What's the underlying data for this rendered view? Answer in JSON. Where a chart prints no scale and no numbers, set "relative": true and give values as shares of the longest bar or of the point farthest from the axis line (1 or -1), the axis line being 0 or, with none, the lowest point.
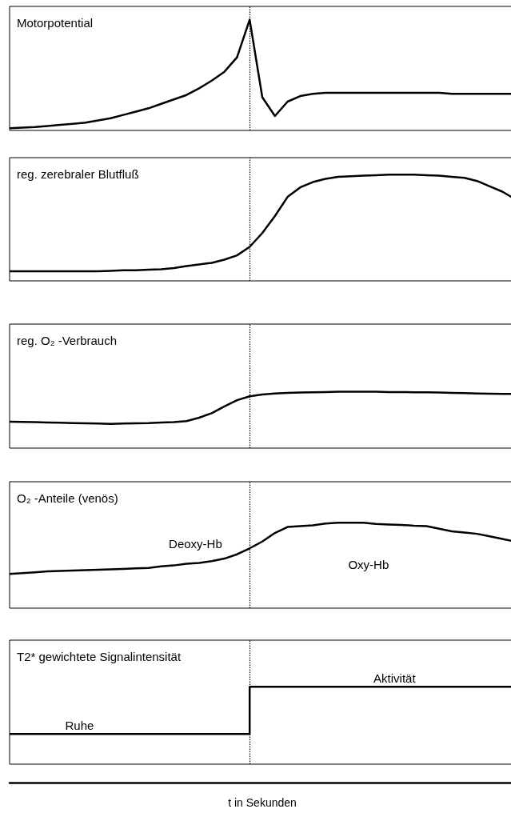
{
  "chart_data": [
    {
      "type": "line",
      "title": "Motorpotential",
      "relative": true,
      "marker": "none",
      "categories": [
        null,
        null,
        null,
        null,
        null,
        null,
        null,
        null,
        null,
        null,
        null,
        null,
        null,
        null,
        null,
        null,
        null,
        null,
        null,
        null,
        null,
        null,
        null,
        null,
        null,
        null,
        null,
        null,
        null,
        null,
        null,
        null,
        null,
        null,
        null,
        null,
        null,
        null,
        null,
        null,
        null
      ],
      "series": [
        {
          "color": "#000000",
          "values": [
            0.02,
            0.025,
            0.03,
            0.04,
            0.05,
            0.06,
            0.07,
            0.09,
            0.11,
            0.14,
            0.17,
            0.2,
            0.24,
            0.28,
            0.32,
            0.38,
            0.45,
            0.53,
            0.66,
            1,
            0.3,
            0.13,
            0.26,
            0.31,
            0.33,
            0.34,
            0.34,
            0.34,
            0.34,
            0.34,
            0.34,
            0.34,
            0.34,
            0.34,
            0.34,
            0.33,
            0.33,
            0.33,
            0.33,
            0.33,
            0.33
          ]
        }
      ]
    },
    {
      "type": "line",
      "title": "reg. zerebraler Blutfluß",
      "relative": true,
      "marker": "none",
      "categories": [
        null,
        null,
        null,
        null,
        null,
        null,
        null,
        null,
        null,
        null,
        null,
        null,
        null,
        null,
        null,
        null,
        null,
        null,
        null,
        null,
        null,
        null,
        null,
        null,
        null,
        null,
        null,
        null,
        null,
        null,
        null,
        null,
        null,
        null,
        null,
        null,
        null,
        null,
        null,
        null,
        null
      ],
      "series": [
        {
          "color": "#000000",
          "values": [
            0.09,
            0.09,
            0.09,
            0.09,
            0.09,
            0.09,
            0.09,
            0.09,
            0.095,
            0.1,
            0.1,
            0.105,
            0.11,
            0.12,
            0.14,
            0.155,
            0.17,
            0.2,
            0.24,
            0.32,
            0.45,
            0.61,
            0.79,
            0.88,
            0.93,
            0.96,
            0.98,
            0.985,
            0.99,
            0.995,
            1,
            1,
            1,
            0.995,
            0.99,
            0.98,
            0.97,
            0.94,
            0.89,
            0.84,
            0.77
          ]
        }
      ]
    },
    {
      "type": "line",
      "title": "reg. O₂ -Verbrauch",
      "relative": true,
      "marker": "none",
      "categories": [
        null,
        null,
        null,
        null,
        null,
        null,
        null,
        null,
        null,
        null,
        null,
        null,
        null,
        null,
        null,
        null,
        null,
        null,
        null,
        null,
        null,
        null,
        null,
        null,
        null,
        null,
        null,
        null,
        null,
        null,
        null,
        null,
        null,
        null,
        null,
        null,
        null,
        null,
        null,
        null,
        null
      ],
      "series": [
        {
          "color": "#000000",
          "values": [
            0.47,
            0.465,
            0.46,
            0.455,
            0.45,
            0.445,
            0.44,
            0.435,
            0.43,
            0.435,
            0.44,
            0.445,
            0.455,
            0.46,
            0.48,
            0.54,
            0.62,
            0.74,
            0.85,
            0.92,
            0.95,
            0.97,
            0.98,
            0.985,
            0.99,
            0.995,
            1,
            1,
            1,
            1,
            0.995,
            0.995,
            0.99,
            0.99,
            0.985,
            0.98,
            0.975,
            0.97,
            0.965,
            0.96,
            0.96
          ]
        }
      ]
    },
    {
      "type": "line",
      "title": "O₂ -Anteile (venös)",
      "relative": true,
      "marker": "none",
      "categories": [
        null,
        null,
        null,
        null,
        null,
        null,
        null,
        null,
        null,
        null,
        null,
        null,
        null,
        null,
        null,
        null,
        null,
        null,
        null,
        null,
        null,
        null,
        null,
        null,
        null,
        null,
        null,
        null,
        null,
        null,
        null,
        null,
        null,
        null,
        null,
        null,
        null,
        null,
        null,
        null,
        null
      ],
      "series": [
        {
          "color": "#000000",
          "values": [
            0.4,
            0.41,
            0.42,
            0.43,
            0.435,
            0.44,
            0.445,
            0.45,
            0.455,
            0.46,
            0.465,
            0.47,
            0.49,
            0.5,
            0.52,
            0.53,
            0.55,
            0.58,
            0.63,
            0.7,
            0.78,
            0.88,
            0.95,
            0.96,
            0.97,
            0.99,
            1,
            1,
            1,
            0.985,
            0.98,
            0.975,
            0.965,
            0.96,
            0.93,
            0.9,
            0.885,
            0.87,
            0.84,
            0.81,
            0.78
          ]
        }
      ],
      "annotations": [
        "Deoxy-Hb",
        "Oxy-Hb"
      ]
    },
    {
      "type": "step",
      "title": "T2* gewichtete Signalintensität",
      "relative": true,
      "marker": "none",
      "xlabel": "t in Sekunden",
      "categories": [
        null,
        null,
        null,
        null,
        null,
        null,
        null,
        null,
        null,
        null,
        null,
        null,
        null,
        null,
        null,
        null,
        null,
        null,
        null,
        null,
        null,
        null,
        null,
        null,
        null,
        null,
        null,
        null,
        null,
        null,
        null,
        null,
        null,
        null,
        null,
        null,
        null,
        null,
        null,
        null,
        null
      ],
      "series": [
        {
          "color": "#000000",
          "line_style": "solid",
          "values": [
            0.39,
            0.39,
            0.39,
            0.39,
            0.39,
            0.39,
            0.39,
            0.39,
            0.39,
            0.39,
            0.39,
            0.39,
            0.39,
            0.39,
            0.39,
            0.39,
            0.39,
            0.39,
            0.39,
            0.39,
            1,
            1,
            1,
            1,
            1,
            1,
            1,
            1,
            1,
            1,
            1,
            1,
            1,
            1,
            1,
            1,
            1,
            1,
            1,
            1,
            1
          ]
        }
      ],
      "annotations": [
        "Ruhe",
        "Aktivität"
      ]
    }
  ]
}
